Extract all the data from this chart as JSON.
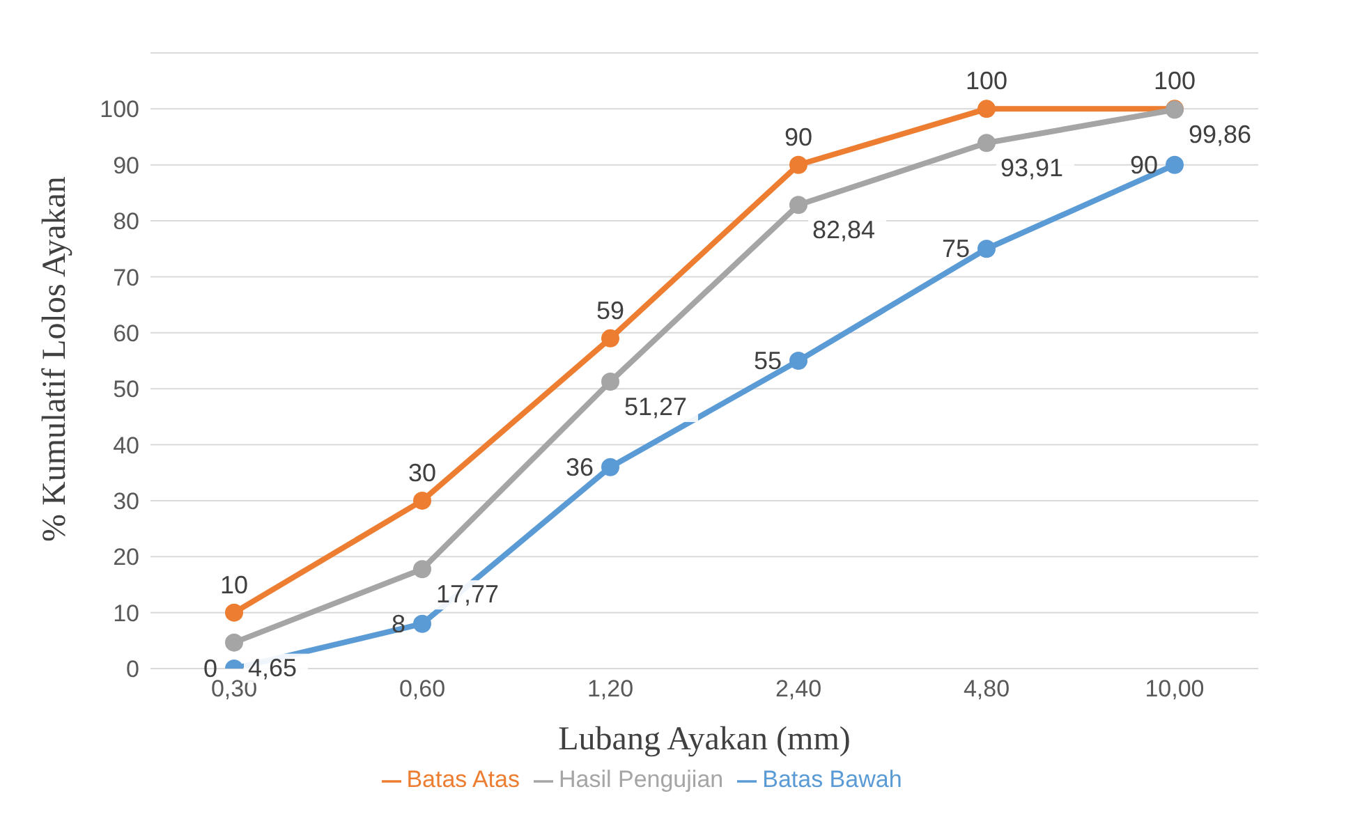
{
  "chart_data": {
    "type": "line",
    "xlabel": "Lubang Ayakan (mm)",
    "ylabel": "% Kumulatif Lolos Ayakan",
    "categories": [
      "0,30",
      "0,60",
      "1,20",
      "2,40",
      "4,80",
      "10,00"
    ],
    "series": [
      {
        "name": "Batas Atas",
        "color": "#ed7d31",
        "values": [
          10,
          30,
          59,
          90,
          100,
          100
        ],
        "value_labels": [
          "10",
          "30",
          "59",
          "90",
          "100",
          "100"
        ]
      },
      {
        "name": "Hasil Pengujian",
        "color": "#a5a5a5",
        "values": [
          4.65,
          17.77,
          51.27,
          82.84,
          93.91,
          99.86
        ],
        "value_labels": [
          "4,65",
          "17,77",
          "51,27",
          "82,84",
          "93,91",
          "99,86"
        ]
      },
      {
        "name": "Batas Bawah",
        "color": "#5b9bd5",
        "values": [
          0,
          8,
          36,
          55,
          75,
          90
        ],
        "value_labels": [
          "0",
          "8",
          "36",
          "55",
          "75",
          "90"
        ]
      }
    ],
    "ylim": [
      0,
      110
    ],
    "yticks": [
      0,
      10,
      20,
      30,
      40,
      50,
      60,
      70,
      80,
      90,
      100
    ],
    "grid": "y",
    "legend": "bottom",
    "marker": "circle",
    "line_style": "solid"
  }
}
